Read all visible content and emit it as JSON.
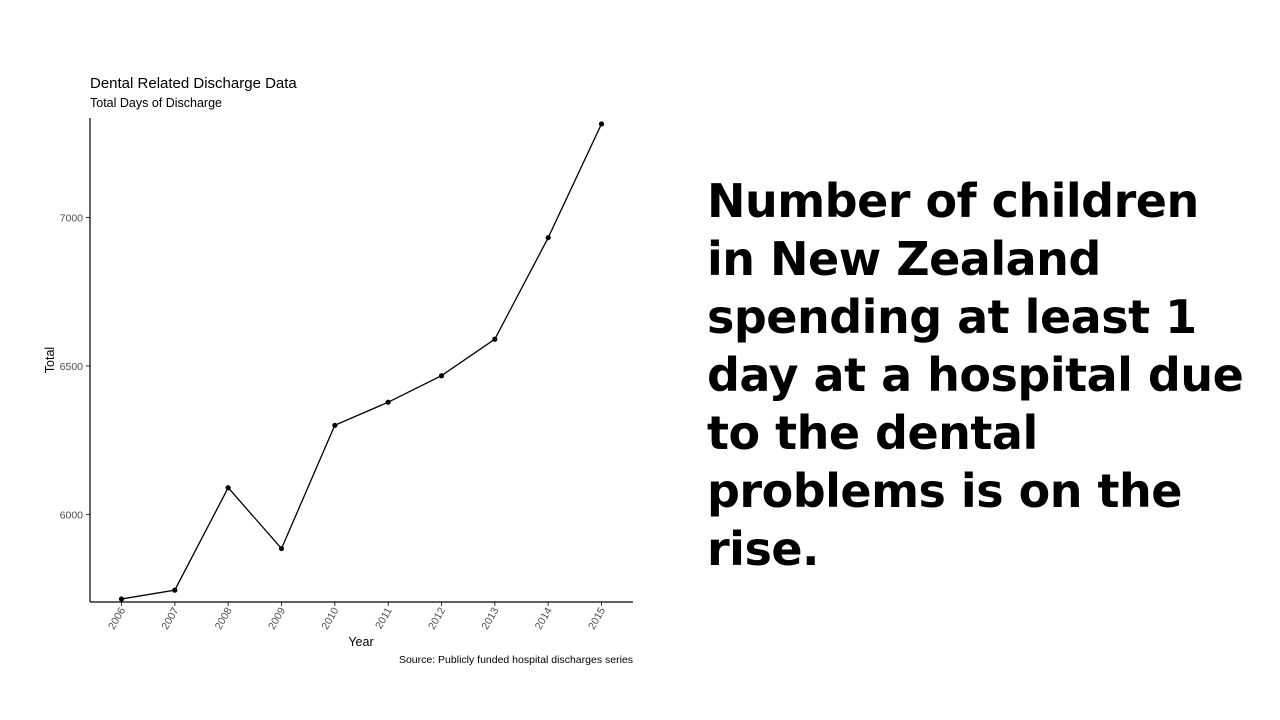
{
  "slide": {
    "headline": "Number of children in New Zealand spending at least 1 day at a hospital due to the dental problems is on the rise."
  },
  "chart_data": {
    "type": "line",
    "title": "Dental Related Discharge Data",
    "subtitle": "Total Days of Discharge",
    "xlabel": "Year",
    "ylabel": "Total",
    "caption": "Source: Publicly funded hospital discharges series",
    "x": [
      "2006",
      "2007",
      "2008",
      "2009",
      "2010",
      "2011",
      "2012",
      "2013",
      "2014",
      "2015"
    ],
    "series": [
      {
        "values": [
          5715,
          5745,
          6090,
          5885,
          6300,
          6378,
          6467,
          6590,
          6932,
          7315
        ]
      }
    ],
    "ylim": [
      5705,
      7335
    ],
    "yticks": [
      6000,
      6500,
      7000
    ],
    "grid": false,
    "legend": "none",
    "line_color": "#000000"
  }
}
